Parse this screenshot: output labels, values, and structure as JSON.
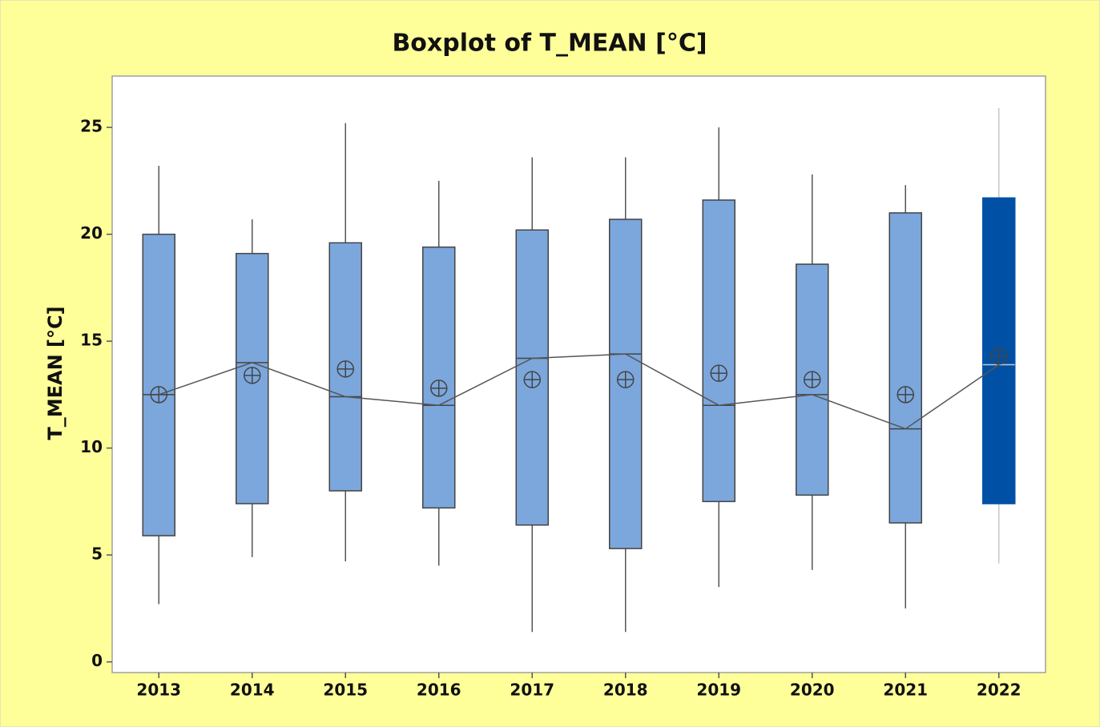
{
  "chart_data": {
    "type": "boxplot",
    "title": "Boxplot of T_MEAN [°C]",
    "y_label": "T_MEAN [°C]",
    "categories": [
      "2013",
      "2014",
      "2015",
      "2016",
      "2017",
      "2018",
      "2019",
      "2020",
      "2021",
      "2022"
    ],
    "whisker_low": [
      2.7,
      4.9,
      4.7,
      4.5,
      1.4,
      1.4,
      3.5,
      4.3,
      2.5,
      4.6
    ],
    "q1": [
      5.9,
      7.4,
      8.0,
      7.2,
      6.4,
      5.3,
      7.5,
      7.8,
      6.5,
      7.4
    ],
    "median": [
      12.5,
      14.0,
      12.4,
      12.0,
      14.2,
      14.4,
      12.0,
      12.5,
      10.9,
      13.9
    ],
    "q3": [
      20.0,
      19.1,
      19.6,
      19.4,
      20.2,
      20.7,
      21.6,
      18.6,
      21.0,
      21.7
    ],
    "whisker_high": [
      23.2,
      20.7,
      25.2,
      22.5,
      23.6,
      23.6,
      25.0,
      22.8,
      22.3,
      25.9
    ],
    "mean": [
      12.5,
      13.4,
      13.7,
      12.8,
      13.2,
      13.2,
      13.5,
      13.2,
      12.5,
      14.3
    ],
    "box_colors": [
      "#7ba7dc",
      "#7ba7dc",
      "#7ba7dc",
      "#7ba7dc",
      "#7ba7dc",
      "#7ba7dc",
      "#7ba7dc",
      "#7ba7dc",
      "#7ba7dc",
      "#0051a5"
    ],
    "whisker_colors": [
      "#555555",
      "#555555",
      "#555555",
      "#555555",
      "#555555",
      "#555555",
      "#555555",
      "#555555",
      "#555555",
      "#c8c8c8"
    ],
    "ylim": [
      -0.5,
      27.4
    ],
    "yticks": [
      0,
      5,
      10,
      15,
      20,
      25
    ]
  }
}
